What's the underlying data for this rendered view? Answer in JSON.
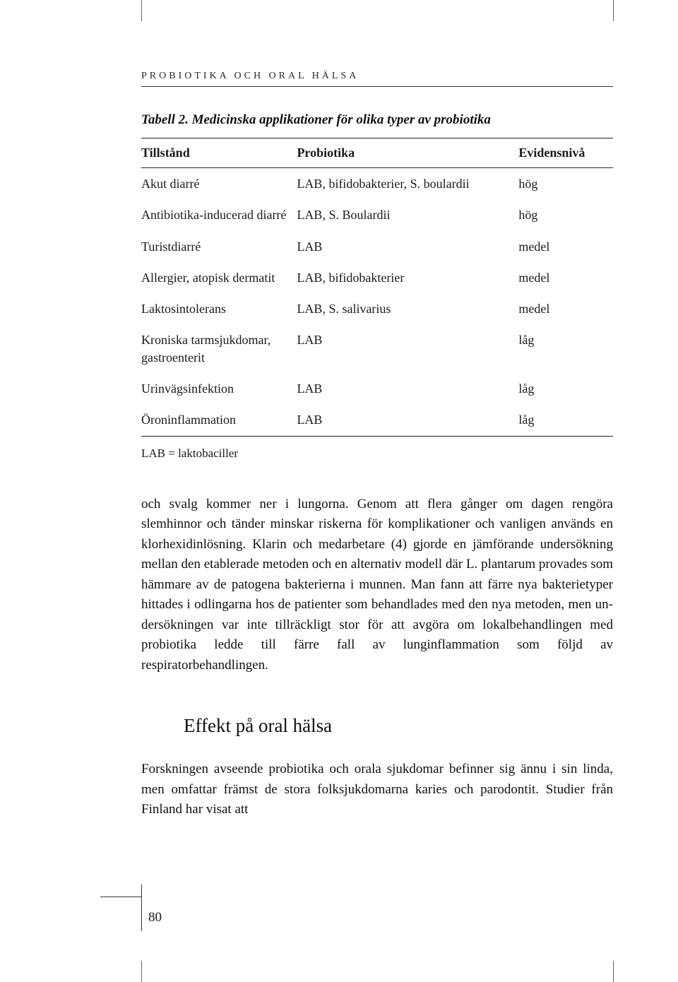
{
  "running_head": "PROBIOTIKA OCH ORAL HÄLSA",
  "table": {
    "caption": "Tabell 2. Medicinska applikationer för olika typer av probiotika",
    "headers": {
      "condition": "Tillstånd",
      "probiotic": "Probiotika",
      "evidence": "Evidensnivå"
    },
    "rows": [
      {
        "condition": "Akut diarré",
        "probiotic": "LAB, bifidobakterier, S. boulardii",
        "evidence": "hög"
      },
      {
        "condition": "Antibiotika-inducerad diarré",
        "probiotic": "LAB, S. Boulardii",
        "evidence": "hög"
      },
      {
        "condition": "Turistdiarré",
        "probiotic": "LAB",
        "evidence": "medel"
      },
      {
        "condition": "Allergier, atopisk dermatit",
        "probiotic": "LAB, bifidobakterier",
        "evidence": "medel"
      },
      {
        "condition": "Laktosintolerans",
        "probiotic": "LAB, S. salivarius",
        "evidence": "medel"
      },
      {
        "condition": "Kroniska tarmsjukdo­mar, gastroenterit",
        "probiotic": "LAB",
        "evidence": "låg"
      },
      {
        "condition": "Urinvägsinfektion",
        "probiotic": "LAB",
        "evidence": "låg"
      },
      {
        "condition": "Öroninflammation",
        "probiotic": "LAB",
        "evidence": "låg"
      }
    ],
    "footnote": "LAB = laktobaciller"
  },
  "paragraph1": "och svalg kommer ner i lungorna. Genom att flera gånger om da­gen rengöra slemhinnor och tänder minskar riskerna för kompli­kationer och vanligen används en klorhexidinlösning. Klarin och medarbetare (4) gjorde en jämförande undersökning mellan den etablerade metoden och en alternativ modell där L. plantarum provades som hämmare av de patogena bakterierna i munnen. Man fann att färre nya bakterietyper hittades i odlingarna hos de patienter som behandlades med den nya metoden, men un­dersökningen var inte tillräckligt stor för att avgöra om lokalbe­handlingen med probiotika ledde till färre fall av lunginflamma­tion som följd av respiratorbehandlingen.",
  "section_heading": "Effekt på oral hälsa",
  "paragraph2": "Forskningen avseende probiotika och orala sjukdomar befinner sig ännu i sin linda, men omfattar främst de stora folksjukdo­marna karies och parodontit. Studier från Finland har visat att",
  "page_number": "80"
}
